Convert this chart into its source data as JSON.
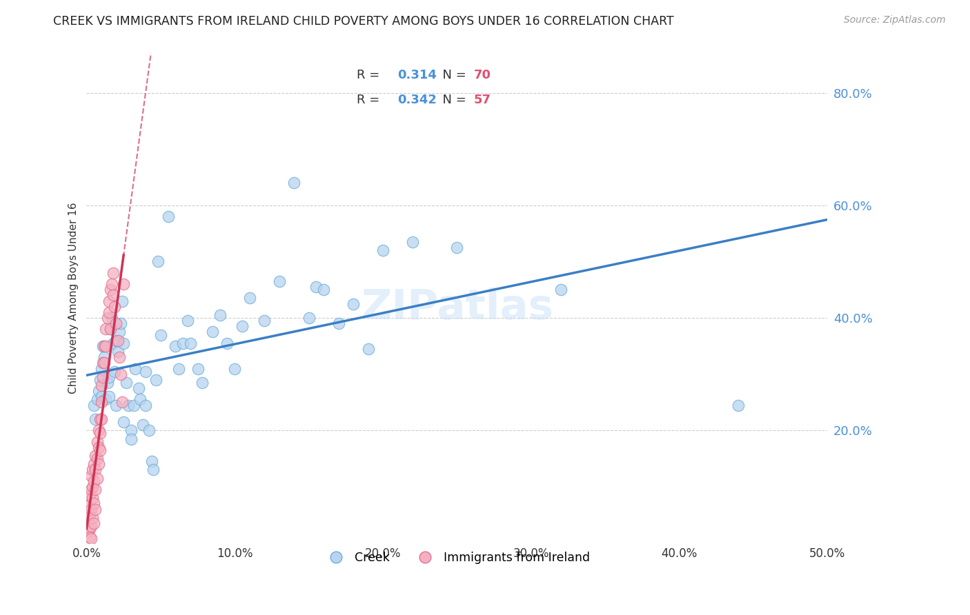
{
  "title": "CREEK VS IMMIGRANTS FROM IRELAND CHILD POVERTY AMONG BOYS UNDER 16 CORRELATION CHART",
  "source": "Source: ZipAtlas.com",
  "ylabel_left": "Child Poverty Among Boys Under 16",
  "xlim": [
    0,
    0.5
  ],
  "ylim": [
    0,
    0.87
  ],
  "xticks": [
    0.0,
    0.1,
    0.2,
    0.3,
    0.4,
    0.5
  ],
  "yticks_right": [
    0.2,
    0.4,
    0.6,
    0.8
  ],
  "creek_color": "#b8d4f0",
  "creek_edge_color": "#6aaed8",
  "ireland_color": "#f5b0c0",
  "ireland_edge_color": "#e07090",
  "creek_R": 0.314,
  "creek_N": 70,
  "ireland_R": 0.342,
  "ireland_N": 57,
  "creek_line_color": "#3a7fc4",
  "ireland_line_color": "#cc3355",
  "watermark": "ZIPatlas",
  "legend_label_creek": "Creek",
  "legend_label_ireland": "Immigrants from Ireland",
  "title_fontsize": 12.5,
  "axis_label_fontsize": 11,
  "tick_fontsize": 12,
  "source_fontsize": 10,
  "creek_scatter": [
    [
      0.005,
      0.245
    ],
    [
      0.006,
      0.22
    ],
    [
      0.007,
      0.255
    ],
    [
      0.008,
      0.27
    ],
    [
      0.009,
      0.29
    ],
    [
      0.01,
      0.31
    ],
    [
      0.01,
      0.26
    ],
    [
      0.011,
      0.35
    ],
    [
      0.012,
      0.33
    ],
    [
      0.013,
      0.255
    ],
    [
      0.014,
      0.285
    ],
    [
      0.015,
      0.295
    ],
    [
      0.015,
      0.26
    ],
    [
      0.016,
      0.38
    ],
    [
      0.017,
      0.4
    ],
    [
      0.018,
      0.355
    ],
    [
      0.019,
      0.305
    ],
    [
      0.02,
      0.245
    ],
    [
      0.02,
      0.36
    ],
    [
      0.021,
      0.34
    ],
    [
      0.022,
      0.375
    ],
    [
      0.023,
      0.39
    ],
    [
      0.024,
      0.43
    ],
    [
      0.025,
      0.355
    ],
    [
      0.025,
      0.215
    ],
    [
      0.027,
      0.285
    ],
    [
      0.028,
      0.245
    ],
    [
      0.03,
      0.2
    ],
    [
      0.03,
      0.185
    ],
    [
      0.032,
      0.245
    ],
    [
      0.033,
      0.31
    ],
    [
      0.035,
      0.275
    ],
    [
      0.036,
      0.255
    ],
    [
      0.038,
      0.21
    ],
    [
      0.04,
      0.245
    ],
    [
      0.04,
      0.305
    ],
    [
      0.042,
      0.2
    ],
    [
      0.044,
      0.145
    ],
    [
      0.045,
      0.13
    ],
    [
      0.047,
      0.29
    ],
    [
      0.048,
      0.5
    ],
    [
      0.05,
      0.37
    ],
    [
      0.055,
      0.58
    ],
    [
      0.06,
      0.35
    ],
    [
      0.062,
      0.31
    ],
    [
      0.065,
      0.355
    ],
    [
      0.068,
      0.395
    ],
    [
      0.07,
      0.355
    ],
    [
      0.075,
      0.31
    ],
    [
      0.078,
      0.285
    ],
    [
      0.085,
      0.375
    ],
    [
      0.09,
      0.405
    ],
    [
      0.095,
      0.355
    ],
    [
      0.1,
      0.31
    ],
    [
      0.105,
      0.385
    ],
    [
      0.11,
      0.435
    ],
    [
      0.12,
      0.395
    ],
    [
      0.13,
      0.465
    ],
    [
      0.14,
      0.64
    ],
    [
      0.15,
      0.4
    ],
    [
      0.155,
      0.455
    ],
    [
      0.16,
      0.45
    ],
    [
      0.17,
      0.39
    ],
    [
      0.18,
      0.425
    ],
    [
      0.19,
      0.345
    ],
    [
      0.2,
      0.52
    ],
    [
      0.22,
      0.535
    ],
    [
      0.25,
      0.525
    ],
    [
      0.32,
      0.45
    ],
    [
      0.44,
      0.245
    ]
  ],
  "ireland_scatter": [
    [
      0.001,
      0.04
    ],
    [
      0.001,
      0.065
    ],
    [
      0.001,
      0.02
    ],
    [
      0.002,
      0.085
    ],
    [
      0.002,
      0.05
    ],
    [
      0.002,
      0.025
    ],
    [
      0.002,
      0.01
    ],
    [
      0.003,
      0.095
    ],
    [
      0.003,
      0.12
    ],
    [
      0.003,
      0.06
    ],
    [
      0.003,
      0.03
    ],
    [
      0.003,
      0.008
    ],
    [
      0.004,
      0.1
    ],
    [
      0.004,
      0.08
    ],
    [
      0.004,
      0.13
    ],
    [
      0.004,
      0.045
    ],
    [
      0.005,
      0.14
    ],
    [
      0.005,
      0.11
    ],
    [
      0.005,
      0.07
    ],
    [
      0.005,
      0.035
    ],
    [
      0.006,
      0.155
    ],
    [
      0.006,
      0.13
    ],
    [
      0.006,
      0.095
    ],
    [
      0.006,
      0.06
    ],
    [
      0.007,
      0.18
    ],
    [
      0.007,
      0.15
    ],
    [
      0.007,
      0.115
    ],
    [
      0.008,
      0.2
    ],
    [
      0.008,
      0.17
    ],
    [
      0.008,
      0.14
    ],
    [
      0.009,
      0.22
    ],
    [
      0.009,
      0.195
    ],
    [
      0.009,
      0.165
    ],
    [
      0.01,
      0.25
    ],
    [
      0.01,
      0.22
    ],
    [
      0.01,
      0.28
    ],
    [
      0.011,
      0.32
    ],
    [
      0.011,
      0.295
    ],
    [
      0.012,
      0.35
    ],
    [
      0.012,
      0.32
    ],
    [
      0.013,
      0.38
    ],
    [
      0.013,
      0.35
    ],
    [
      0.014,
      0.4
    ],
    [
      0.015,
      0.43
    ],
    [
      0.015,
      0.41
    ],
    [
      0.016,
      0.45
    ],
    [
      0.016,
      0.38
    ],
    [
      0.017,
      0.46
    ],
    [
      0.018,
      0.48
    ],
    [
      0.018,
      0.44
    ],
    [
      0.019,
      0.42
    ],
    [
      0.02,
      0.39
    ],
    [
      0.021,
      0.36
    ],
    [
      0.022,
      0.33
    ],
    [
      0.023,
      0.3
    ],
    [
      0.024,
      0.25
    ],
    [
      0.025,
      0.46
    ]
  ]
}
